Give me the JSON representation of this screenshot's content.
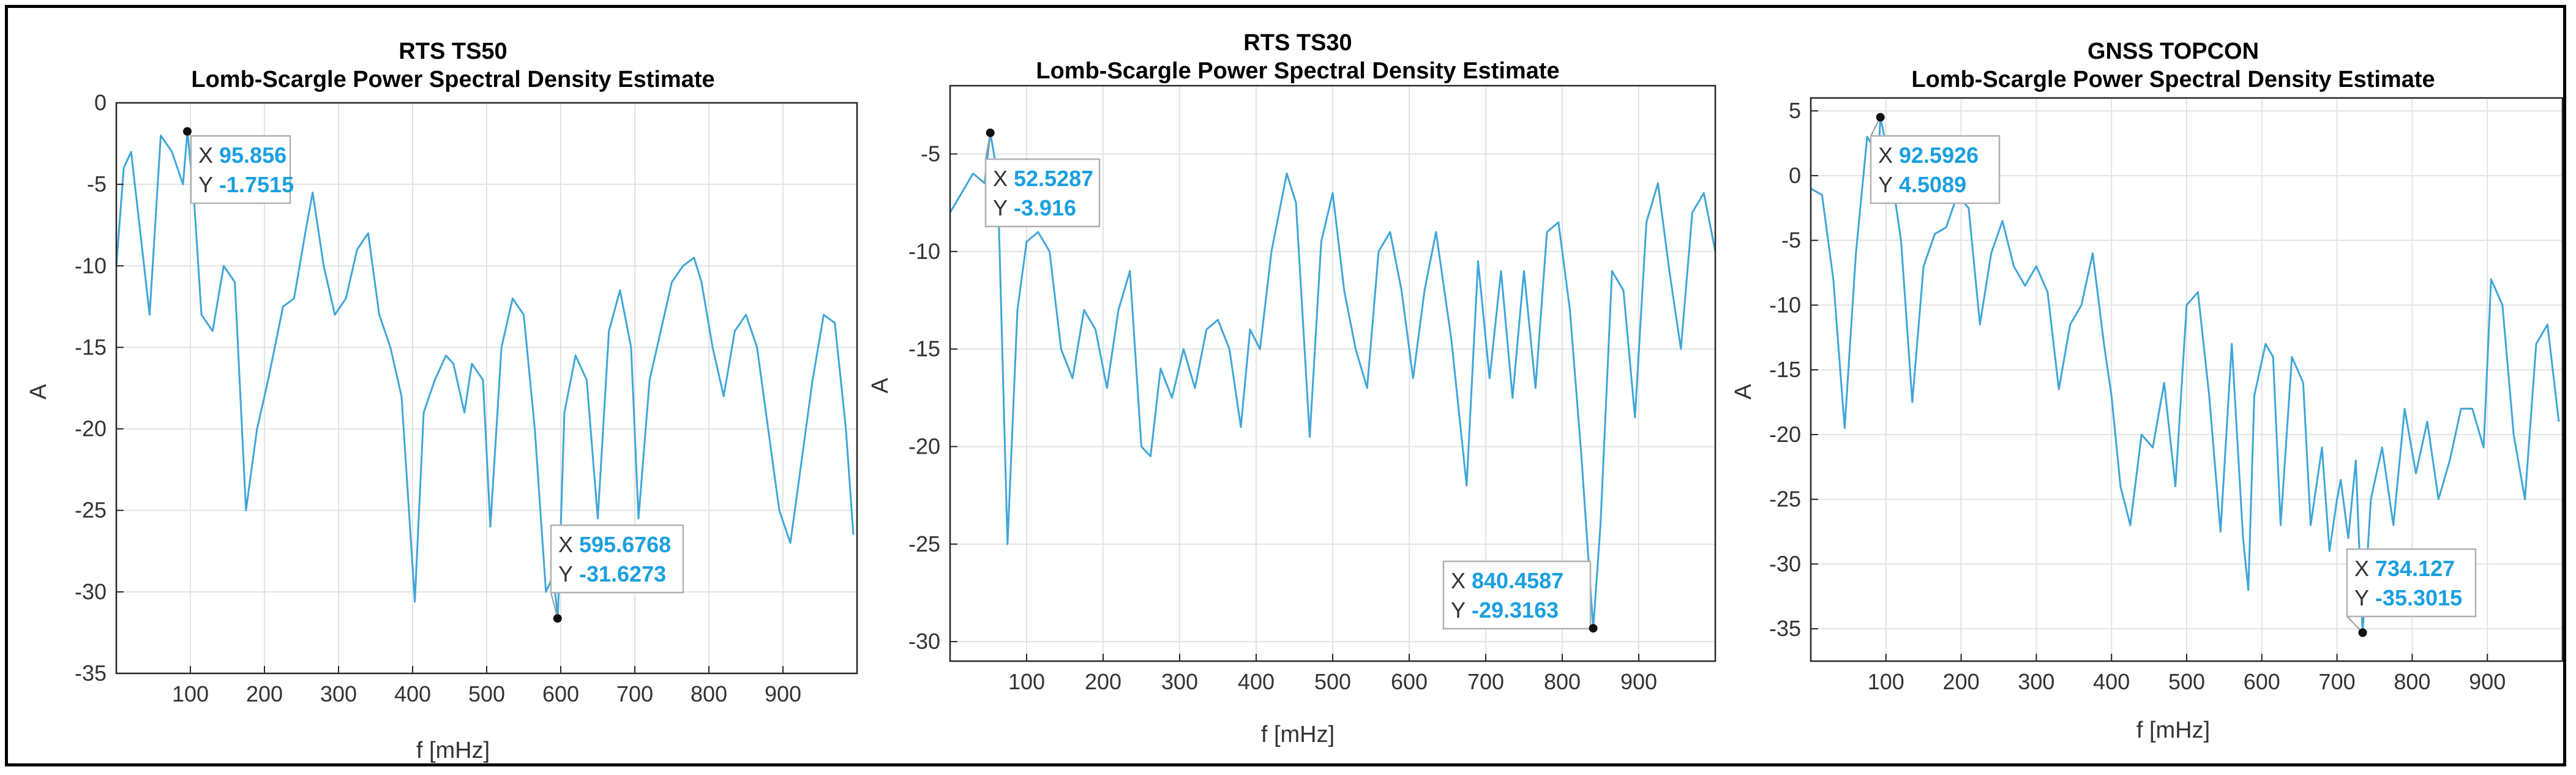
{
  "chart_data": [
    {
      "type": "line",
      "title": "RTS TS50",
      "subtitle": "Lomb-Scargle Power Spectral Density Estimate",
      "xlabel": "f [mHz]",
      "ylabel": "A",
      "xlim": [
        0,
        1000
      ],
      "ylim": [
        -35,
        0
      ],
      "xticks": [
        100,
        200,
        300,
        400,
        500,
        600,
        700,
        800,
        900
      ],
      "yticks": [
        0,
        -5,
        -10,
        -15,
        -20,
        -25,
        -30,
        -35
      ],
      "grid": true,
      "line_color": "#3fa6d8",
      "series": [
        {
          "name": "PSD",
          "x": [
            0,
            10,
            20,
            30,
            45,
            60,
            75,
            90,
            96,
            105,
            115,
            130,
            145,
            160,
            175,
            190,
            205,
            225,
            240,
            255,
            265,
            280,
            295,
            310,
            325,
            340,
            355,
            370,
            385,
            395,
            403,
            415,
            430,
            445,
            455,
            470,
            480,
            495,
            505,
            520,
            535,
            550,
            565,
            580,
            590,
            596,
            605,
            620,
            635,
            650,
            665,
            680,
            695,
            705,
            720,
            735,
            750,
            765,
            780,
            790,
            805,
            820,
            835,
            850,
            865,
            880,
            895,
            910,
            925,
            940,
            955,
            970,
            985,
            995
          ],
          "values": [
            -10,
            -4,
            -3,
            -7,
            -13,
            -2,
            -3,
            -5,
            -1.75,
            -6,
            -13,
            -14,
            -10,
            -11,
            -25,
            -20,
            -17,
            -12.5,
            -12,
            -8,
            -5.5,
            -10,
            -13,
            -12,
            -9,
            -8,
            -13,
            -15,
            -18,
            -25,
            -30.6,
            -19,
            -17,
            -15.5,
            -16,
            -19,
            -16,
            -17,
            -26,
            -15,
            -12,
            -13,
            -20,
            -30,
            -29,
            -31.63,
            -19,
            -15.5,
            -17,
            -25.5,
            -14,
            -11.5,
            -15,
            -25.5,
            -17,
            -14,
            -11,
            -10,
            -9.5,
            -11,
            -15,
            -18,
            -14,
            -13,
            -15,
            -20,
            -25,
            -27,
            -22,
            -17,
            -13,
            -13.5,
            -20,
            -26.5
          ]
        }
      ],
      "datatips": [
        {
          "x_label": "X",
          "y_label": "Y",
          "x_value": "95.856",
          "y_value": "-1.7515",
          "x": 95.856,
          "y": -1.7515
        },
        {
          "x_label": "X",
          "y_label": "Y",
          "x_value": "595.6768",
          "y_value": "-31.6273",
          "x": 595.6768,
          "y": -31.6273
        }
      ]
    },
    {
      "type": "line",
      "title": "RTS TS30",
      "subtitle": "Lomb-Scargle Power Spectral Density Estimate",
      "xlabel": "f [mHz]",
      "ylabel": "A",
      "xlim": [
        0,
        1000
      ],
      "ylim": [
        -31,
        -1.5
      ],
      "xticks": [
        100,
        200,
        300,
        400,
        500,
        600,
        700,
        800,
        900
      ],
      "yticks": [
        -5,
        -10,
        -15,
        -20,
        -25,
        -30
      ],
      "grid": true,
      "line_color": "#3fa6d8",
      "series": [
        {
          "name": "PSD",
          "x": [
            0,
            15,
            30,
            45,
            52.5,
            62,
            75,
            88,
            100,
            115,
            130,
            145,
            160,
            175,
            190,
            205,
            220,
            235,
            250,
            262,
            275,
            290,
            305,
            320,
            335,
            350,
            365,
            380,
            392,
            405,
            420,
            440,
            452,
            470,
            485,
            500,
            515,
            530,
            545,
            560,
            575,
            590,
            605,
            620,
            635,
            655,
            675,
            690,
            705,
            720,
            735,
            750,
            765,
            780,
            795,
            810,
            825,
            840.5,
            850,
            865,
            880,
            895,
            910,
            925,
            940,
            955,
            970,
            985,
            1000
          ],
          "values": [
            -8,
            -7,
            -6,
            -6.5,
            -3.92,
            -6,
            -25,
            -13,
            -9.5,
            -9,
            -10,
            -15,
            -16.5,
            -13,
            -14,
            -17,
            -13,
            -11,
            -20,
            -20.5,
            -16,
            -17.5,
            -15,
            -17,
            -14,
            -13.5,
            -15,
            -19,
            -14,
            -15,
            -10,
            -6,
            -7.5,
            -19.5,
            -9.5,
            -7,
            -12,
            -15,
            -17,
            -10,
            -9,
            -12,
            -16.5,
            -12,
            -9,
            -14.5,
            -22,
            -10.5,
            -16.5,
            -11,
            -17.5,
            -11,
            -17,
            -9,
            -8.5,
            -13,
            -20.5,
            -29.32,
            -24,
            -11,
            -12,
            -18.5,
            -8.5,
            -6.5,
            -11,
            -15,
            -8,
            -7,
            -10
          ]
        }
      ],
      "datatips": [
        {
          "x_label": "X",
          "y_label": "Y",
          "x_value": "52.5287",
          "y_value": "-3.916",
          "x": 52.5287,
          "y": -3.916
        },
        {
          "x_label": "X",
          "y_label": "Y",
          "x_value": "840.4587",
          "y_value": "-29.3163",
          "x": 840.4587,
          "y": -29.3163
        }
      ]
    },
    {
      "type": "line",
      "title": "GNSS TOPCON",
      "subtitle": "Lomb-Scargle Power Spectral Density Estimate",
      "xlabel": "f [mHz]",
      "ylabel": "A",
      "xlim": [
        0,
        1000
      ],
      "ylim": [
        -37.5,
        6
      ],
      "xticks": [
        100,
        200,
        300,
        400,
        500,
        600,
        700,
        800,
        900
      ],
      "yticks": [
        5,
        0,
        -5,
        -10,
        -15,
        -20,
        -25,
        -30,
        -35
      ],
      "grid": true,
      "line_color": "#3fa6d8",
      "series": [
        {
          "name": "PSD",
          "x": [
            0,
            15,
            30,
            45,
            60,
            75,
            90,
            92.6,
            105,
            120,
            135,
            150,
            165,
            180,
            195,
            210,
            225,
            240,
            255,
            270,
            285,
            300,
            315,
            330,
            345,
            360,
            375,
            390,
            400,
            412,
            425,
            440,
            455,
            470,
            485,
            500,
            515,
            530,
            545,
            560,
            575,
            582,
            590,
            605,
            615,
            625,
            640,
            655,
            665,
            680,
            690,
            700,
            705,
            715,
            725,
            734,
            745,
            760,
            775,
            790,
            805,
            820,
            835,
            850,
            865,
            880,
            895,
            905,
            920,
            935,
            950,
            965,
            980,
            995
          ],
          "values": [
            -1,
            -1.5,
            -8,
            -19.5,
            -6,
            3,
            1.5,
            4.51,
            1,
            -5,
            -17.5,
            -7,
            -4.5,
            -4,
            -1.5,
            -2.5,
            -11.5,
            -6,
            -3.5,
            -7,
            -8.5,
            -7,
            -9,
            -16.5,
            -11.5,
            -10,
            -6,
            -13,
            -17,
            -24,
            -27,
            -20,
            -21,
            -16,
            -24,
            -10,
            -9,
            -17,
            -27.5,
            -13,
            -28,
            -32,
            -17,
            -13,
            -14,
            -27,
            -14,
            -16,
            -27,
            -21,
            -29,
            -25,
            -23.5,
            -28,
            -22,
            -35.3,
            -25,
            -21,
            -27,
            -18,
            -23,
            -19,
            -25,
            -22,
            -18,
            -18,
            -21,
            -8,
            -10,
            -20,
            -25,
            -13,
            -11.5,
            -19
          ]
        }
      ],
      "datatips": [
        {
          "x_label": "X",
          "y_label": "Y",
          "x_value": "92.5926",
          "y_value": "4.5089",
          "x": 92.5926,
          "y": 4.5089
        },
        {
          "x_label": "X",
          "y_label": "Y",
          "x_value": "734.127",
          "y_value": "-35.3015",
          "x": 734.127,
          "y": -35.3015
        }
      ]
    }
  ]
}
